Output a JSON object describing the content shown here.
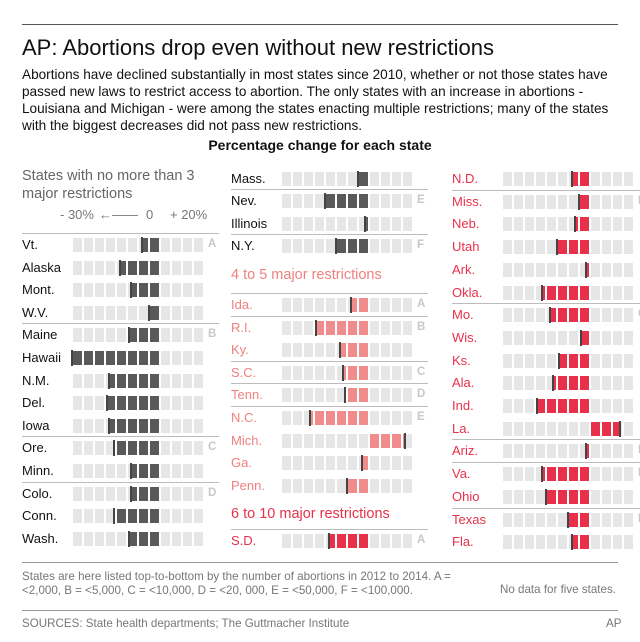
{
  "title": "AP: Abortions drop even without new restrictions",
  "intro": "Abortions have declined substantially in most states since 2010,  whether or not those states have passed new laws to restrict access to abortion. The only states with an increase in abortions - Louisiana and Michigan - were among the states enacting multiple restrictions; many of the states with the biggest decreases did not pass new restrictions.",
  "subtitle": "Percentage change for each state",
  "group_labels": {
    "low": "States with no more than 3 major restrictions",
    "mid": "4 to 5 major restrictions",
    "high": "6 to 10 major restrictions"
  },
  "scale": {
    "minus30": "- 30%",
    "zero": "0",
    "plus20": "+ 20%"
  },
  "note": "States are here listed top-to-bottom by the number of abortions in 2012 to 2014. A = <2,000, B = <5,000, C = <10,000, D = <20, 000, E = <50,000, F = <100,000.",
  "no_data": "No data for five states.",
  "sources": "SOURCES: State health departments; The Guttmacher Institute",
  "credit": "AP",
  "colors": {
    "low": "#595959",
    "mid": "#f08c8c",
    "high": "#e8304a",
    "cell_bg": "#e6e6e6",
    "category": "#c8c8c8"
  },
  "chart_data": {
    "type": "bar",
    "ylabel": "Percentage change",
    "xlim": [
      -40,
      30
    ],
    "groups": [
      {
        "name": "States with no more than 3 major restrictions",
        "states": [
          {
            "state": "Vt.",
            "change": -8,
            "category": "A"
          },
          {
            "state": "Alaska",
            "change": -18
          },
          {
            "state": "Mont.",
            "change": -13
          },
          {
            "state": "W.V.",
            "change": -5
          },
          {
            "state": "Maine",
            "change": -14,
            "category": "B"
          },
          {
            "state": "Hawaii",
            "change": -40
          },
          {
            "state": "N.M.",
            "change": -23
          },
          {
            "state": "Del.",
            "change": -24
          },
          {
            "state": "Iowa",
            "change": -23
          },
          {
            "state": "Ore.",
            "change": -21,
            "category": "C"
          },
          {
            "state": "Minn.",
            "change": -13
          },
          {
            "state": "Colo.",
            "change": -13,
            "category": "D"
          },
          {
            "state": "Conn.",
            "change": -21
          },
          {
            "state": "Wash.",
            "change": -14
          }
        ]
      },
      {
        "name": "States with no more than 3 major restrictions (continued)",
        "states": [
          {
            "state": "Mass.",
            "change": -5
          },
          {
            "state": "Nev.",
            "change": -20,
            "category": "E"
          },
          {
            "state": "Illinois",
            "change": -2
          },
          {
            "state": "N.Y.",
            "change": -15,
            "category": "F"
          }
        ]
      },
      {
        "name": "4 to 5 major restrictions",
        "states": [
          {
            "state": "Ida.",
            "change": -8,
            "category": "A"
          },
          {
            "state": "R.I.",
            "change": -24,
            "category": "B"
          },
          {
            "state": "Ky.",
            "change": -13
          },
          {
            "state": "S.C.",
            "change": -12,
            "category": "C"
          },
          {
            "state": "Tenn.",
            "change": -11,
            "category": "D"
          },
          {
            "state": "N.C.",
            "change": -27,
            "category": "E"
          },
          {
            "state": "Mich.",
            "change": 16
          },
          {
            "state": "Ga.",
            "change": -3
          },
          {
            "state": "Penn.",
            "change": -10
          }
        ]
      },
      {
        "name": "6 to 10 major restrictions",
        "states": [
          {
            "state": "S.D.",
            "change": -18,
            "category": "A"
          },
          {
            "state": "N.D.",
            "change": -8
          },
          {
            "state": "Miss.",
            "change": -5,
            "category": "B"
          },
          {
            "state": "Neb.",
            "change": -7
          },
          {
            "state": "Utah",
            "change": -15
          },
          {
            "state": "Ark.",
            "change": -2
          },
          {
            "state": "Okla.",
            "change": -22
          },
          {
            "state": "Mo.",
            "change": -18,
            "category": "C"
          },
          {
            "state": "Wis.",
            "change": -4
          },
          {
            "state": "Ks.",
            "change": -14
          },
          {
            "state": "Ala.",
            "change": -17
          },
          {
            "state": "Ind.",
            "change": -24
          },
          {
            "state": "La.",
            "change": 13
          },
          {
            "state": "Ariz.",
            "change": -2,
            "category": "D"
          },
          {
            "state": "Va.",
            "change": -22,
            "category": "E"
          },
          {
            "state": "Ohio",
            "change": -20
          },
          {
            "state": "Texas",
            "change": -10,
            "category": "F"
          },
          {
            "state": "Fla.",
            "change": -8
          }
        ]
      }
    ]
  }
}
